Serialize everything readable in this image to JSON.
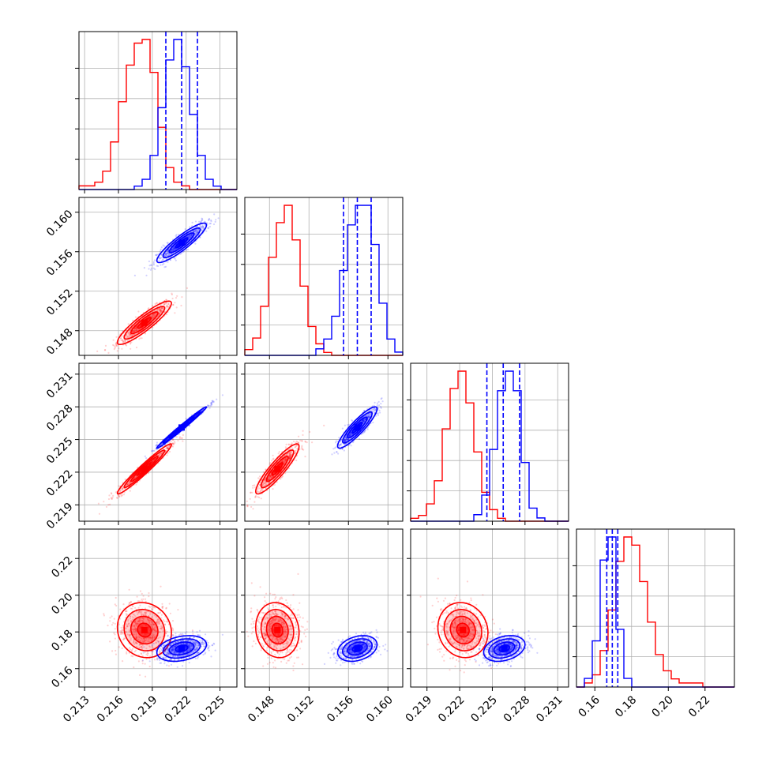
{
  "colors": {
    "red": "#ff0000",
    "blue": "#0000ff"
  },
  "chart_data": {
    "type": "corner",
    "parameters": 4,
    "grid": true,
    "title": "",
    "param_ranges": [
      [
        0.2125,
        0.2265
      ],
      [
        0.1455,
        0.1615
      ],
      [
        0.2175,
        0.232
      ],
      [
        0.15,
        0.236
      ]
    ],
    "ticks": [
      {
        "values": [
          0.213,
          0.216,
          0.219,
          0.222,
          0.225
        ],
        "labels": [
          "0.213",
          "0.216",
          "0.219",
          "0.222",
          "0.225"
        ]
      },
      {
        "values": [
          0.148,
          0.152,
          0.156,
          0.16
        ],
        "labels": [
          "0.148",
          "0.152",
          "0.156",
          "0.160"
        ]
      },
      {
        "values": [
          0.219,
          0.222,
          0.225,
          0.228,
          0.231
        ],
        "labels": [
          "0.219",
          "0.222",
          "0.225",
          "0.228",
          "0.231"
        ]
      },
      {
        "values": [
          0.16,
          0.18,
          0.2,
          0.22
        ],
        "labels": [
          "0.16",
          "0.18",
          "0.20",
          "0.22"
        ]
      }
    ],
    "series": [
      {
        "color": "#ff0000",
        "mean": [
          0.2183,
          0.1488,
          0.2223,
          0.181
        ],
        "sd": [
          0.0012,
          0.0011,
          0.00115,
          0.0075
        ],
        "histograms": [
          {
            "edges": [
              0.2125,
              0.2265
            ],
            "counts": [
              1,
              1,
              2,
              5,
              13,
              24,
              34,
              40,
              41,
              32,
              17,
              6,
              2,
              1,
              0,
              0,
              0,
              0,
              0,
              0
            ]
          },
          {
            "edges": [
              0.1455,
              0.1615
            ],
            "counts": [
              2,
              6,
              17,
              34,
              46,
              52,
              40,
              24,
              10,
              4,
              1,
              0,
              0,
              0,
              0,
              0,
              0,
              0,
              0,
              0
            ]
          },
          {
            "edges": [
              0.2175,
              0.232
            ],
            "counts": [
              1,
              2,
              6,
              14,
              32,
              46,
              52,
              41,
              24,
              10,
              4,
              1,
              0,
              0,
              0,
              0,
              0,
              0,
              0,
              0
            ]
          },
          {
            "edges": [
              0.15,
              0.236
            ],
            "counts": [
              0,
              1,
              3,
              9,
              19,
              31,
              37,
              35,
              26,
              16,
              8,
              4,
              2,
              1,
              1,
              1,
              0,
              0,
              0,
              0
            ]
          }
        ],
        "correlations": {
          "0-1": 0.9,
          "0-2": 0.97,
          "1-2": 0.9,
          "0-3": -0.1,
          "1-3": -0.1,
          "2-3": -0.1
        }
      },
      {
        "color": "#0000ff",
        "mean": [
          0.2216,
          0.1569,
          0.2261,
          0.171
        ],
        "sd": [
          0.0011,
          0.001,
          0.00095,
          0.0035
        ],
        "quantiles": [
          [
            0.2202,
            0.2216,
            0.223
          ],
          [
            0.1555,
            0.1569,
            0.1583
          ],
          [
            0.2245,
            0.226,
            0.2275
          ],
          [
            0.1665,
            0.1695,
            0.1725
          ]
        ],
        "histograms": [
          {
            "edges": [
              0.2125,
              0.2265
            ],
            "counts": [
              0,
              0,
              0,
              0,
              0,
              0,
              0,
              1,
              3,
              10,
              24,
              38,
              44,
              36,
              22,
              10,
              3,
              1,
              0,
              0
            ]
          },
          {
            "edges": [
              0.1455,
              0.1615
            ],
            "counts": [
              0,
              0,
              0,
              0,
              0,
              0,
              0,
              0,
              0,
              2,
              5,
              12,
              26,
              40,
              46,
              46,
              34,
              16,
              5,
              1
            ]
          },
          {
            "edges": [
              0.2175,
              0.232
            ],
            "counts": [
              0,
              0,
              0,
              0,
              0,
              0,
              0,
              0,
              2,
              8,
              22,
              40,
              46,
              40,
              18,
              4,
              1,
              0,
              0,
              0
            ]
          },
          {
            "edges": [
              0.15,
              0.236
            ],
            "counts": [
              0,
              3,
              16,
              44,
              52,
              20,
              3,
              0,
              0,
              0,
              0,
              0,
              0,
              0,
              0,
              0,
              0,
              0,
              0,
              0
            ]
          }
        ],
        "correlations": {
          "0-1": 0.9,
          "0-2": 0.99,
          "1-2": 0.9,
          "0-3": 0.3,
          "1-3": 0.3,
          "2-3": 0.3
        }
      }
    ]
  }
}
